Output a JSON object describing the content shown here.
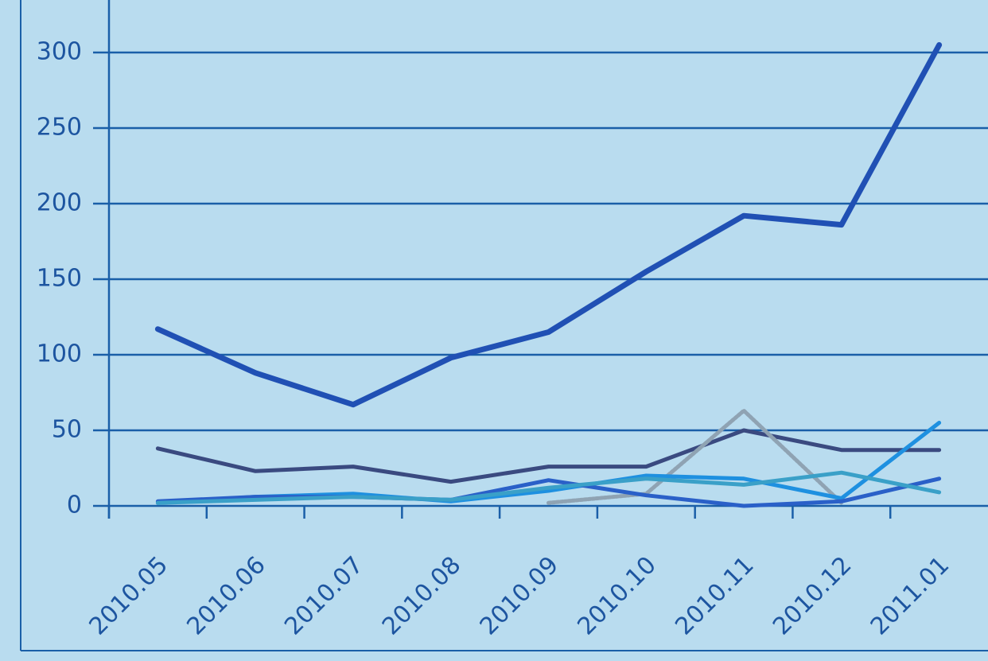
{
  "chart_data": {
    "type": "line",
    "categories": [
      "2010.05",
      "2010.06",
      "2010.07",
      "2010.08",
      "2010.09",
      "2010.10",
      "2010.11",
      "2010.12",
      "2011.01"
    ],
    "series": [
      {
        "color": "#2050b4",
        "values": [
          117,
          88,
          67,
          98,
          115,
          155,
          192,
          186,
          305
        ]
      },
      {
        "color": "#3a4a80",
        "values": [
          38,
          23,
          26,
          16,
          26,
          26,
          50,
          37,
          37
        ]
      },
      {
        "color": "#8fa3b3",
        "dashed": true,
        "values": [
          null,
          null,
          null,
          null,
          2,
          8,
          63,
          2,
          null
        ]
      },
      {
        "color": "#1e90e0",
        "values": [
          2,
          6,
          8,
          3,
          10,
          20,
          18,
          5,
          55
        ]
      },
      {
        "color": "#2a60c8",
        "values": [
          3,
          6,
          6,
          4,
          17,
          7,
          0,
          3,
          18
        ]
      },
      {
        "color": "#3aa0c8",
        "values": [
          2,
          4,
          6,
          4,
          12,
          18,
          14,
          22,
          9
        ]
      }
    ],
    "ylim": [
      0,
      330
    ],
    "yticks": [
      0,
      50,
      100,
      150,
      200,
      250,
      300
    ],
    "grid": true
  }
}
